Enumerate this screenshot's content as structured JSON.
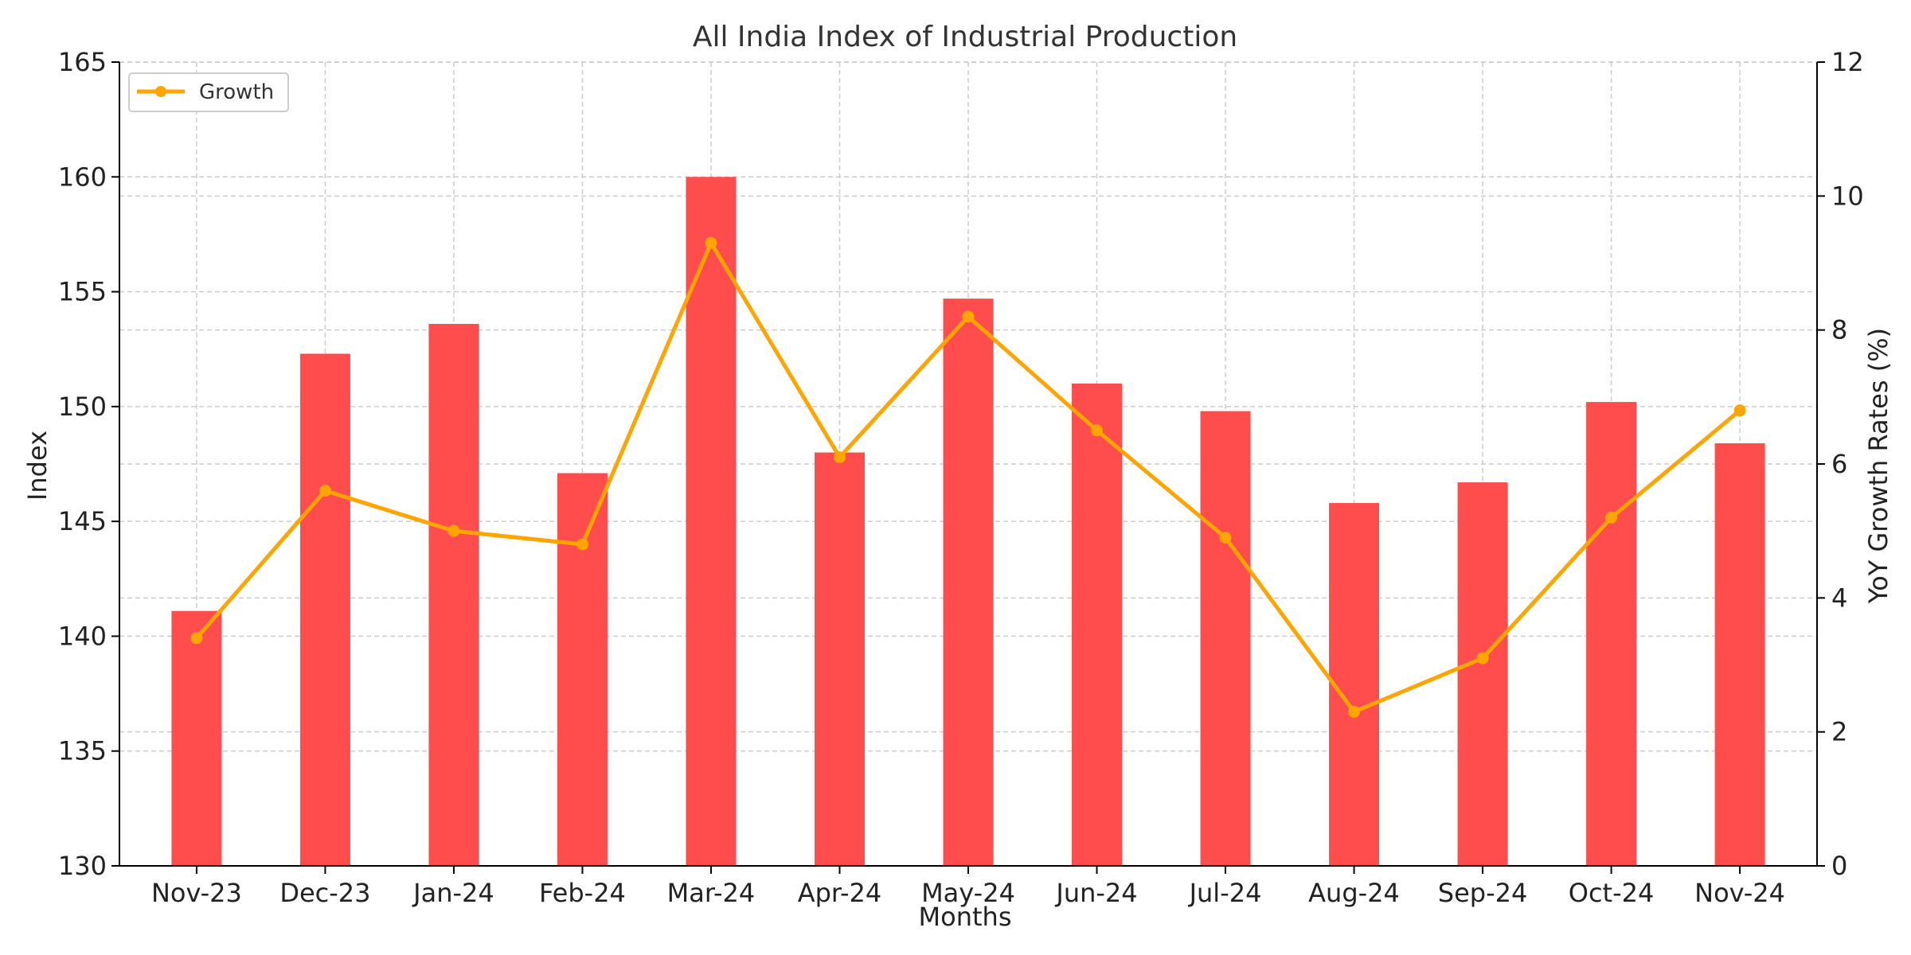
{
  "chart_data": {
    "type": "bar",
    "title": "All India Index of Industrial Production",
    "xlabel": "Months",
    "ylabel": "Index",
    "y2label": "YoY Growth Rates (%)",
    "categories": [
      "Nov-23",
      "Dec-23",
      "Jan-24",
      "Feb-24",
      "Mar-24",
      "Apr-24",
      "May-24",
      "Jun-24",
      "Jul-24",
      "Aug-24",
      "Sep-24",
      "Oct-24",
      "Nov-24"
    ],
    "ylim": [
      130,
      165
    ],
    "y_ticks": [
      130,
      135,
      140,
      145,
      150,
      155,
      160,
      165
    ],
    "y2lim": [
      0,
      12
    ],
    "y2_ticks": [
      0,
      2,
      4,
      6,
      8,
      10,
      12
    ],
    "grid": true,
    "legend_position": "top-left",
    "series": [
      {
        "type": "bar",
        "axis": "left",
        "color": "#ff4d4d",
        "values": [
          141.1,
          152.3,
          153.6,
          147.1,
          160.0,
          148.0,
          154.7,
          151.0,
          149.8,
          145.8,
          146.7,
          150.2,
          148.4
        ]
      },
      {
        "name": "Growth",
        "type": "line",
        "axis": "right",
        "color": "#ffa500",
        "values": [
          3.4,
          5.6,
          5.0,
          4.8,
          9.3,
          6.1,
          8.2,
          6.5,
          4.9,
          2.3,
          3.1,
          5.2,
          6.8
        ]
      }
    ]
  }
}
